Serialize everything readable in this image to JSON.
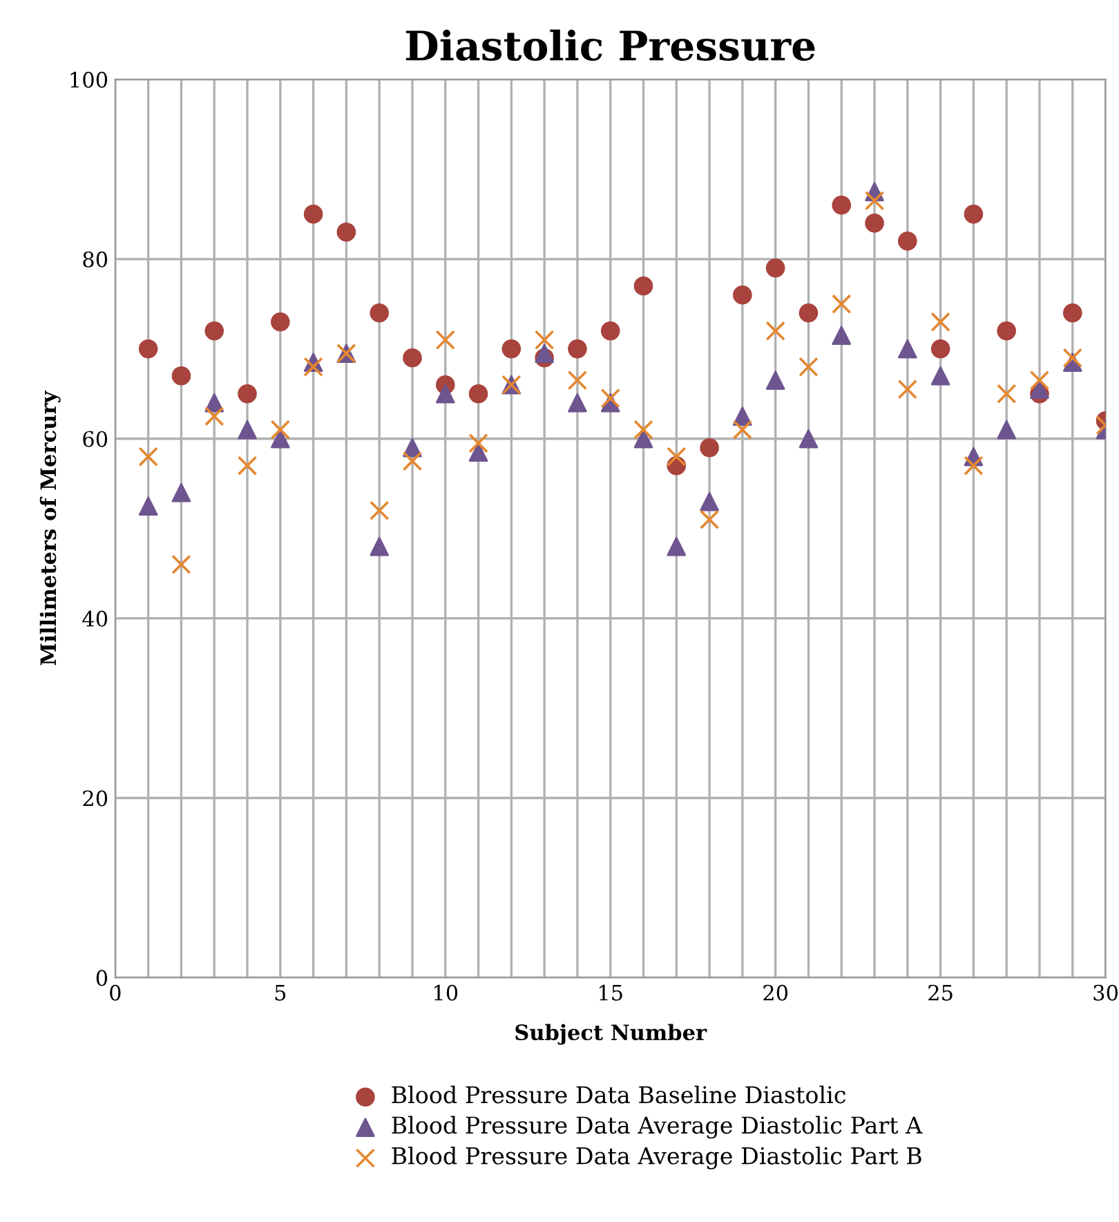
{
  "chart_data": {
    "type": "scatter",
    "title": "Diastolic Pressure",
    "xlabel": "Subject Number",
    "ylabel": "Millimeters of Mercury",
    "x": [
      1,
      2,
      3,
      4,
      5,
      6,
      7,
      8,
      9,
      10,
      11,
      12,
      13,
      14,
      15,
      16,
      17,
      18,
      19,
      20,
      21,
      22,
      23,
      24,
      25,
      26,
      27,
      28,
      29,
      30
    ],
    "series": [
      {
        "name": "Blood Pressure Data Baseline Diastolic",
        "color": "#a9433d",
        "marker": "circle",
        "values": [
          70,
          67,
          72,
          65,
          73,
          85,
          83,
          74,
          69,
          66,
          65,
          70,
          69,
          70,
          72,
          77,
          57,
          59,
          76,
          79,
          74,
          86,
          84,
          82,
          70,
          85,
          72,
          65,
          74,
          62
        ]
      },
      {
        "name": "Blood Pressure Data Average Diastolic Part A",
        "color": "#6e558f",
        "marker": "triangle",
        "values": [
          52.5,
          54,
          64,
          61,
          60,
          68.5,
          69.5,
          48,
          59,
          65,
          58.5,
          66,
          69.5,
          64,
          64,
          60,
          48,
          53,
          62.5,
          66.5,
          60,
          71.5,
          87.5,
          70,
          67,
          58,
          61,
          65.5,
          68.5,
          61
        ]
      },
      {
        "name": "Blood Pressure Data Average Diastolic Part B",
        "color": "#e5872f",
        "marker": "cross",
        "values": [
          58,
          46,
          62.5,
          57,
          61,
          68,
          69.5,
          52,
          57.5,
          71,
          59.5,
          66,
          71,
          66.5,
          64.5,
          61,
          58,
          51,
          61,
          72,
          68,
          75,
          86.5,
          65.5,
          73,
          57,
          65,
          66.5,
          69,
          61.5
        ]
      }
    ],
    "xlim": [
      0,
      30
    ],
    "ylim": [
      0,
      100
    ],
    "xticks": [
      0,
      {
        "value": 1,
        "label": null
      },
      {
        "value": 2,
        "label": null
      },
      {
        "value": 3,
        "label": null
      },
      {
        "value": 4,
        "label": null
      },
      5,
      {
        "value": 6,
        "label": null
      },
      {
        "value": 7,
        "label": null
      },
      {
        "value": 8,
        "label": null
      },
      {
        "value": 9,
        "label": null
      },
      10,
      {
        "value": 11,
        "label": null
      },
      {
        "value": 12,
        "label": null
      },
      {
        "value": 13,
        "label": null
      },
      {
        "value": 14,
        "label": null
      },
      15,
      {
        "value": 16,
        "label": null
      },
      {
        "value": 17,
        "label": null
      },
      {
        "value": 18,
        "label": null
      },
      {
        "value": 19,
        "label": null
      },
      20,
      {
        "value": 21,
        "label": null
      },
      {
        "value": 22,
        "label": null
      },
      {
        "value": 23,
        "label": null
      },
      {
        "value": 24,
        "label": null
      },
      25,
      {
        "value": 26,
        "label": null
      },
      {
        "value": 27,
        "label": null
      },
      {
        "value": 28,
        "label": null
      },
      {
        "value": 29,
        "label": null
      },
      30
    ],
    "yticks": [
      0,
      20,
      40,
      60,
      80,
      100
    ],
    "grid": true,
    "legend": "bottom"
  }
}
